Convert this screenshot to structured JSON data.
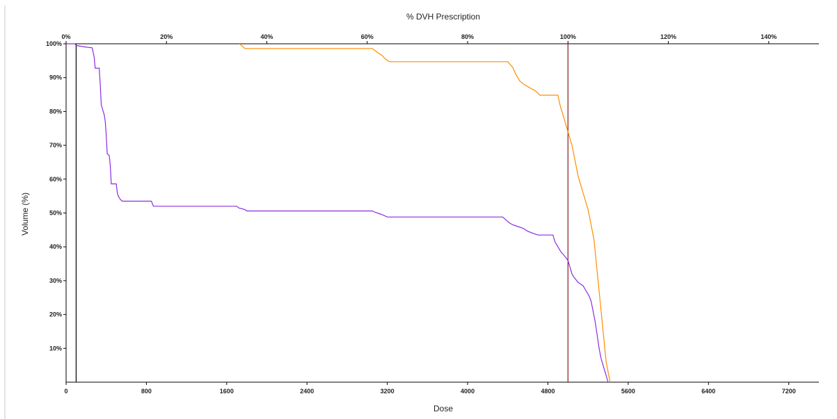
{
  "chart_data": {
    "type": "line",
    "title": "% DVH Prescription",
    "xlabel": "Dose",
    "ylabel": "Volume (%)",
    "xlim": [
      0,
      7500
    ],
    "ylim": [
      0,
      100
    ],
    "grid": false,
    "x_ticks": [
      0,
      800,
      1600,
      2400,
      3200,
      4000,
      4800,
      5600,
      6400,
      7200
    ],
    "x_tick_labels": [
      "0",
      "800",
      "1600",
      "2400",
      "3200",
      "4000",
      "4800",
      "5600",
      "6400",
      "7200"
    ],
    "top_ticks": [
      0,
      20,
      40,
      60,
      80,
      100,
      120,
      140
    ],
    "top_tick_labels": [
      "0%",
      "20%",
      "40%",
      "60%",
      "80%",
      "100%",
      "120%",
      "140%"
    ],
    "y_ticks": [
      10,
      20,
      30,
      40,
      50,
      60,
      70,
      80,
      90,
      100
    ],
    "y_tick_labels": [
      "10%",
      "20%",
      "30%",
      "40%",
      "50%",
      "60%",
      "70%",
      "80%",
      "90%",
      "100%"
    ],
    "prescription_dose": 5000,
    "reference_lines": [
      {
        "x": 100,
        "color": "#000000"
      },
      {
        "x": 5000,
        "color": "#8b1a1a"
      }
    ],
    "series": [
      {
        "color": "#8a2be2",
        "points": [
          [
            0,
            100
          ],
          [
            90,
            100
          ],
          [
            100,
            99.5
          ],
          [
            140,
            99.3
          ],
          [
            200,
            99
          ],
          [
            260,
            98.8
          ],
          [
            280,
            96
          ],
          [
            290,
            92.8
          ],
          [
            330,
            92.8
          ],
          [
            340,
            88
          ],
          [
            350,
            82
          ],
          [
            360,
            81
          ],
          [
            380,
            79
          ],
          [
            390,
            77
          ],
          [
            400,
            73
          ],
          [
            410,
            67.5
          ],
          [
            430,
            67
          ],
          [
            440,
            64
          ],
          [
            450,
            58.6
          ],
          [
            500,
            58.6
          ],
          [
            510,
            56
          ],
          [
            520,
            55
          ],
          [
            540,
            54
          ],
          [
            560,
            53.5
          ],
          [
            850,
            53.5
          ],
          [
            870,
            52
          ],
          [
            1200,
            52
          ],
          [
            1700,
            52
          ],
          [
            1720,
            51.5
          ],
          [
            1780,
            51
          ],
          [
            1800,
            50.6
          ],
          [
            2900,
            50.6
          ],
          [
            3050,
            50.6
          ],
          [
            3080,
            50.2
          ],
          [
            3120,
            49.8
          ],
          [
            3150,
            49.5
          ],
          [
            3200,
            48.8
          ],
          [
            4200,
            48.8
          ],
          [
            4350,
            48.8
          ],
          [
            4380,
            48
          ],
          [
            4420,
            47
          ],
          [
            4450,
            46.5
          ],
          [
            4500,
            46
          ],
          [
            4550,
            45.5
          ],
          [
            4600,
            44.6
          ],
          [
            4650,
            44
          ],
          [
            4700,
            43.5
          ],
          [
            4850,
            43.5
          ],
          [
            4870,
            41.5
          ],
          [
            4900,
            40
          ],
          [
            4930,
            38.5
          ],
          [
            4960,
            37.5
          ],
          [
            5000,
            36
          ],
          [
            5020,
            34
          ],
          [
            5040,
            32
          ],
          [
            5060,
            31
          ],
          [
            5100,
            29.5
          ],
          [
            5150,
            28.5
          ],
          [
            5180,
            27
          ],
          [
            5210,
            25.5
          ],
          [
            5230,
            24
          ],
          [
            5250,
            21
          ],
          [
            5270,
            18
          ],
          [
            5290,
            14
          ],
          [
            5310,
            10
          ],
          [
            5330,
            7
          ],
          [
            5350,
            5
          ],
          [
            5370,
            3
          ],
          [
            5400,
            0
          ]
        ]
      },
      {
        "color": "#ff8c00",
        "points": [
          [
            1730,
            100
          ],
          [
            1780,
            98.6
          ],
          [
            3050,
            98.6
          ],
          [
            3100,
            97.5
          ],
          [
            3150,
            96.5
          ],
          [
            3180,
            95.5
          ],
          [
            3220,
            94.7
          ],
          [
            4400,
            94.7
          ],
          [
            4450,
            93
          ],
          [
            4480,
            91
          ],
          [
            4520,
            89
          ],
          [
            4560,
            88
          ],
          [
            4620,
            87
          ],
          [
            4680,
            86
          ],
          [
            4720,
            84.8
          ],
          [
            4900,
            84.8
          ],
          [
            4920,
            82
          ],
          [
            4940,
            80
          ],
          [
            4960,
            78
          ],
          [
            4980,
            76
          ],
          [
            5000,
            74
          ],
          [
            5020,
            72
          ],
          [
            5040,
            70
          ],
          [
            5060,
            67
          ],
          [
            5080,
            64
          ],
          [
            5100,
            61
          ],
          [
            5120,
            59
          ],
          [
            5140,
            57
          ],
          [
            5160,
            55
          ],
          [
            5180,
            53
          ],
          [
            5200,
            51
          ],
          [
            5220,
            48
          ],
          [
            5240,
            45
          ],
          [
            5260,
            42
          ],
          [
            5280,
            36
          ],
          [
            5300,
            30
          ],
          [
            5320,
            24
          ],
          [
            5340,
            18
          ],
          [
            5360,
            12
          ],
          [
            5380,
            6
          ],
          [
            5400,
            3
          ],
          [
            5420,
            0
          ]
        ]
      }
    ]
  }
}
